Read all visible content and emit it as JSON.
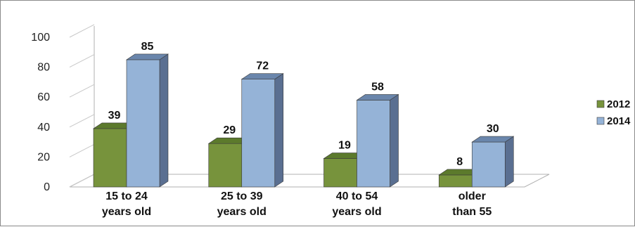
{
  "chart_data": {
    "type": "bar",
    "categories": [
      [
        "15 to 24",
        "years old"
      ],
      [
        "25 to 39",
        "years old"
      ],
      [
        "40 to 54",
        "years old"
      ],
      [
        "older",
        "than 55"
      ]
    ],
    "series": [
      {
        "name": "2012",
        "values": [
          39,
          29,
          19,
          8
        ],
        "color": "#77933c",
        "top": "#5c7a2c",
        "side": "#4f6228"
      },
      {
        "name": "2014",
        "values": [
          85,
          72,
          58,
          30
        ],
        "color": "#95b3d7",
        "top": "#6a86ac",
        "side": "#5a6f91"
      }
    ],
    "ylim": [
      0,
      100
    ],
    "yticks": [
      0,
      20,
      40,
      60,
      80,
      100
    ],
    "grid": false,
    "legend": "right",
    "style": "3d-clustered-column"
  }
}
